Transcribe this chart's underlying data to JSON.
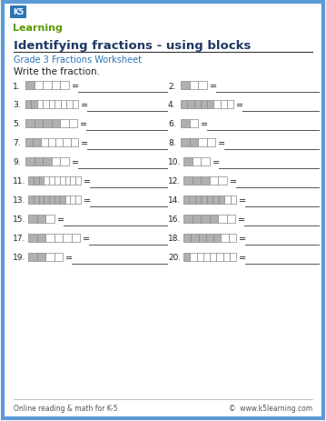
{
  "title": "Identifying fractions - using blocks",
  "subtitle": "Grade 3 Fractions Worksheet",
  "instruction": "Write the fraction.",
  "bg_color": "#ffffff",
  "border_color": "#5b9bd5",
  "title_color": "#1f3864",
  "subtitle_color": "#2e74b5",
  "footer_left": "Online reading & math for K-5",
  "footer_right": "©  www.k5learning.com",
  "shaded_color": "#b0b0b0",
  "unshaded_color": "#ffffff",
  "cell_edge_color": "#888888",
  "problems": [
    {
      "num": 1,
      "total": 5,
      "shaded": 1,
      "col": 0
    },
    {
      "num": 2,
      "total": 3,
      "shaded": 1,
      "col": 1
    },
    {
      "num": 3,
      "total": 9,
      "shaded": 2,
      "col": 0
    },
    {
      "num": 4,
      "total": 8,
      "shaded": 5,
      "col": 1
    },
    {
      "num": 5,
      "total": 6,
      "shaded": 4,
      "col": 0
    },
    {
      "num": 6,
      "total": 2,
      "shaded": 1,
      "col": 1
    },
    {
      "num": 7,
      "total": 7,
      "shaded": 2,
      "col": 0
    },
    {
      "num": 8,
      "total": 4,
      "shaded": 2,
      "col": 1
    },
    {
      "num": 9,
      "total": 5,
      "shaded": 3,
      "col": 0
    },
    {
      "num": 10,
      "total": 3,
      "shaded": 1,
      "col": 1
    },
    {
      "num": 11,
      "total": 10,
      "shaded": 3,
      "col": 0
    },
    {
      "num": 12,
      "total": 5,
      "shaded": 3,
      "col": 1
    },
    {
      "num": 13,
      "total": 10,
      "shaded": 7,
      "col": 0
    },
    {
      "num": 14,
      "total": 9,
      "shaded": 7,
      "col": 1
    },
    {
      "num": 15,
      "total": 3,
      "shaded": 2,
      "col": 0
    },
    {
      "num": 16,
      "total": 6,
      "shaded": 4,
      "col": 1
    },
    {
      "num": 17,
      "total": 6,
      "shaded": 2,
      "col": 0
    },
    {
      "num": 18,
      "total": 7,
      "shaded": 5,
      "col": 1
    },
    {
      "num": 19,
      "total": 4,
      "shaded": 2,
      "col": 0
    },
    {
      "num": 20,
      "total": 8,
      "shaded": 1,
      "col": 1
    }
  ]
}
